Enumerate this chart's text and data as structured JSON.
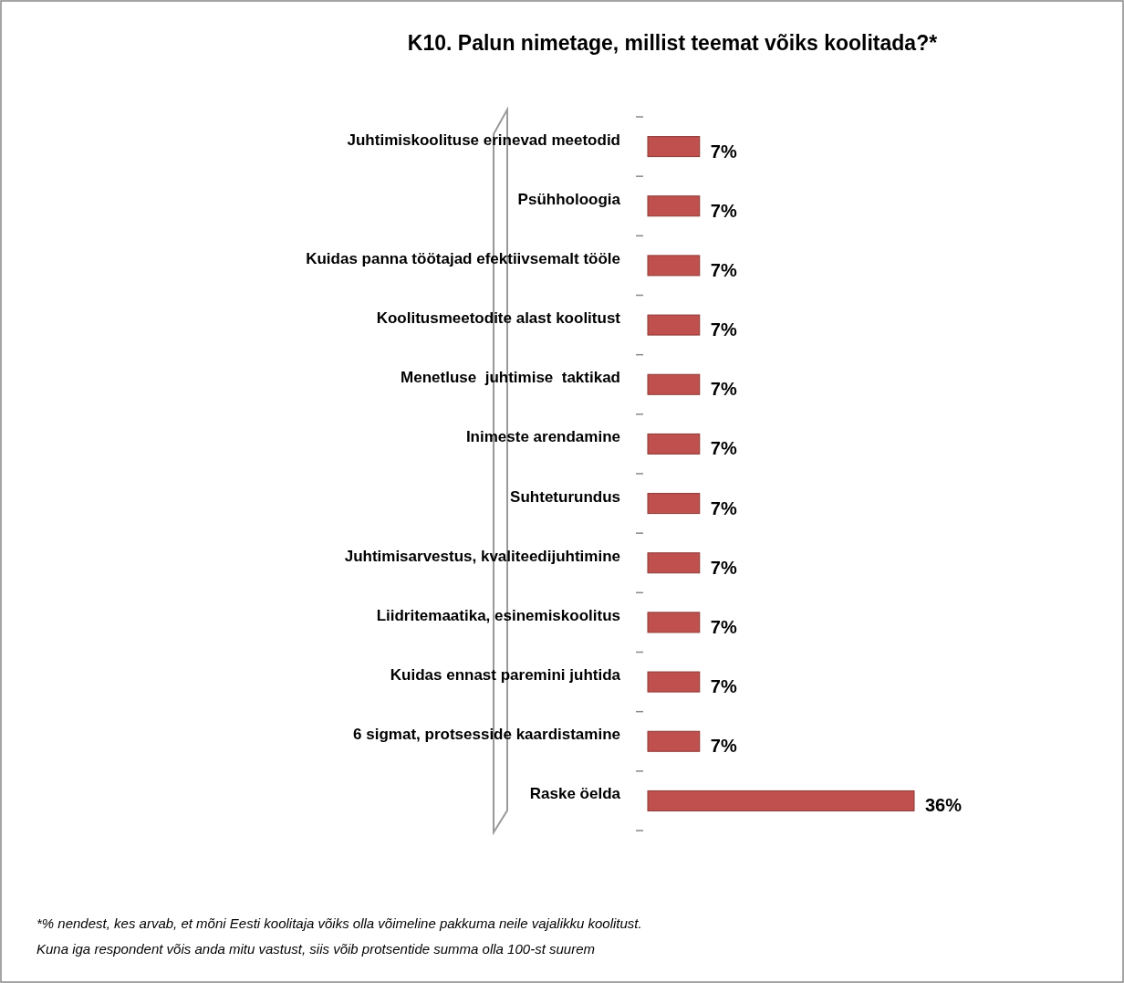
{
  "chart_data": {
    "type": "bar",
    "orientation": "horizontal",
    "title": "K10. Palun nimetage, millist teemat võiks koolitada?*",
    "categories": [
      "Juhtimiskoolituse erinevad meetodid",
      "Psühholoogia",
      "Kuidas panna töötajad efektiivsemalt tööle",
      "Koolitusmeetodite alast koolitust",
      "Menetluse  juhtimise  taktikad",
      "Inimeste arendamine",
      "Suhteturundus",
      "Juhtimisarvestus, kvaliteedijuhtimine",
      "Liidritemaatika, esinemiskoolitus",
      "Kuidas ennast paremini juhtida",
      "6 sigmat, protsesside kaardistamine",
      "Raske öelda"
    ],
    "values": [
      7,
      7,
      7,
      7,
      7,
      7,
      7,
      7,
      7,
      7,
      7,
      36
    ],
    "value_labels": [
      "7%",
      "7%",
      "7%",
      "7%",
      "7%",
      "7%",
      "7%",
      "7%",
      "7%",
      "7%",
      "7%",
      "36%"
    ],
    "color": "#c0504d",
    "tick_labels": "y",
    "annotations": [
      "*% nendest, kes arvab, et mõni Eesti koolitaja võiks olla võimeline pakkuma neile vajalikku koolitust.",
      "Kuna iga respondent võis anda mitu vastust, siis võib protsentide summa olla 100-st suurem"
    ]
  }
}
